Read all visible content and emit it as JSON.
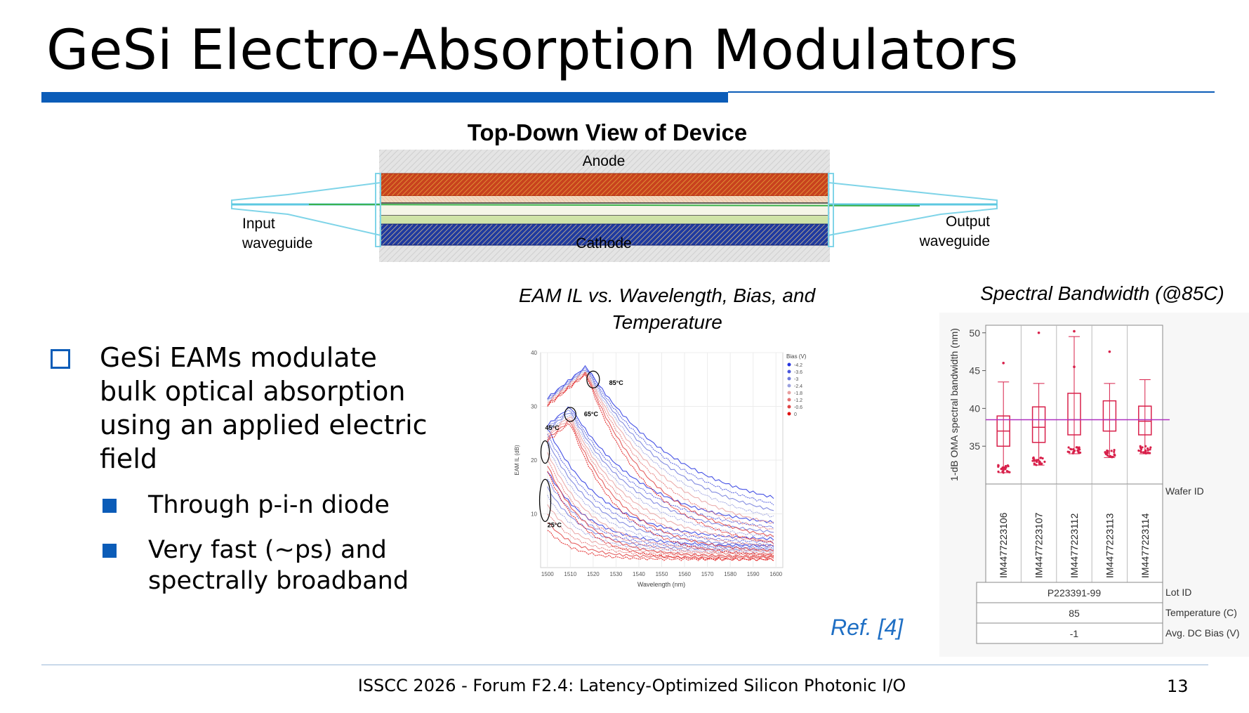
{
  "slide": {
    "title": "GeSi Electro-Absorption Modulators",
    "page_number": "13",
    "footer": "ISSCC 2026 - Forum F2.4: Latency-Optimized Silicon Photonic I/O",
    "ref": "Ref. [4]"
  },
  "device": {
    "title": "Top-Down View of Device",
    "anode": "Anode",
    "cathode": "Cathode",
    "input_label_1": "Input",
    "input_label_2": "waveguide",
    "output_label_1": "Output",
    "output_label_2": "waveguide"
  },
  "bullets": {
    "main_lines": [
      "GeSi EAMs modulate",
      "bulk optical absorption",
      "using an applied electric",
      "field"
    ],
    "sub1": "Through p-i-n diode",
    "sub2_lines": [
      "Very fast (~ps) and",
      "spectrally broadband"
    ]
  },
  "chart_data": [
    {
      "type": "line",
      "title": "EAM IL vs. Wavelength, Bias, and Temperature",
      "xlabel": "Wavelength (nm)",
      "ylabel": "EAM IL (dB)",
      "xlim": [
        1497,
        1603
      ],
      "ylim": [
        0,
        40
      ],
      "x_ticks": [
        "1500",
        "1510",
        "1520",
        "1530",
        "1540",
        "1550",
        "1560",
        "1570",
        "1580",
        "1590",
        "1600"
      ],
      "y_ticks": [
        "10",
        "20",
        "30",
        "40"
      ],
      "legend_title": "Bias (V)",
      "legend": [
        "-4.2",
        "-3.6",
        "-3",
        "-2.4",
        "-1.8",
        "-1.2",
        "-0.6",
        "0"
      ],
      "legend_colors": [
        "#2433e0",
        "#4a56dd",
        "#6f79dc",
        "#9aa0de",
        "#e8a0a0",
        "#e47070",
        "#e04545",
        "#e01010"
      ],
      "grid": true,
      "legend_position": "top-right",
      "temperature_labels": [
        "85°C",
        "65°C",
        "45°C",
        "25°C"
      ],
      "temperatures": [
        {
          "label": "25°C",
          "peak_x": 1500,
          "peak_low": 7,
          "peak_high": 18,
          "floor_low": 1.5,
          "floor_high": 4,
          "decay": 18
        },
        {
          "label": "45°C",
          "peak_x": 1500,
          "peak_low": 18,
          "peak_high": 26,
          "floor_low": 1.5,
          "floor_high": 5,
          "decay": 24
        },
        {
          "label": "65°C",
          "peak_x": 1510,
          "peak_low": 27,
          "peak_high": 30,
          "floor_low": 2,
          "floor_high": 7,
          "decay": 32
        },
        {
          "label": "85°C",
          "peak_x": 1517,
          "peak_low": 36,
          "peak_high": 37.5,
          "floor_low": 3,
          "floor_high": 9,
          "decay": 42
        }
      ]
    },
    {
      "type": "box",
      "title": "Spectral Bandwidth (@85C)",
      "ylabel": "1-dB OMA spectral bandwidth (nm)",
      "ylim": [
        30,
        51
      ],
      "y_ticks": [
        "35",
        "40",
        "45",
        "50"
      ],
      "reference_line": 38.5,
      "categories": [
        "IM4477223106",
        "IM4477223107",
        "IM4477223112",
        "IM4477223113",
        "IM4477223114"
      ],
      "boxes": [
        {
          "min": 31.5,
          "q1": 35,
          "median": 37,
          "q3": 39,
          "max": 43.5,
          "outliers": [
            46
          ]
        },
        {
          "min": 32.5,
          "q1": 35.5,
          "median": 37.5,
          "q3": 40.2,
          "max": 43.3,
          "outliers": [
            50
          ]
        },
        {
          "min": 34,
          "q1": 36.5,
          "median": 38.5,
          "q3": 42,
          "max": 49.5,
          "outliers": [
            50.2,
            45.5
          ]
        },
        {
          "min": 33.5,
          "q1": 37,
          "median": 38.5,
          "q3": 41,
          "max": 43.3,
          "outliers": [
            47.5
          ]
        },
        {
          "min": 34,
          "q1": 36.5,
          "median": 38.3,
          "q3": 40.3,
          "max": 43.8,
          "outliers": []
        }
      ],
      "wafer_id_label": "Wafer ID",
      "lot_id_label": "Lot ID",
      "lot_id": "P223391-99",
      "temperature_label": "Temperature (C)",
      "temperature": "85",
      "bias_label": "Avg. DC Bias (V)",
      "bias": "-1"
    }
  ]
}
